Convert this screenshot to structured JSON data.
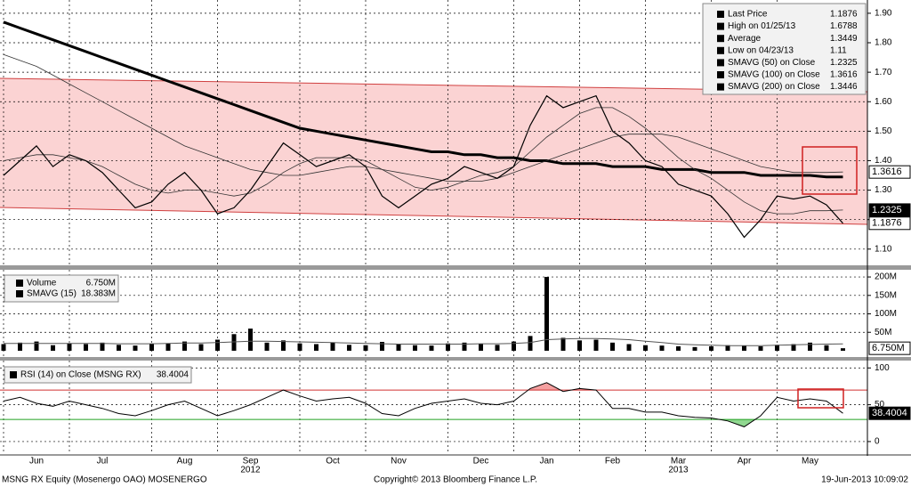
{
  "x_axis": {
    "categories": [
      null,
      null,
      "Jun",
      null,
      null,
      null,
      "Jul",
      null,
      null,
      null,
      null,
      "Aug",
      null,
      null,
      null,
      "Sep",
      null,
      null,
      null,
      null,
      "Oct",
      null,
      null,
      null,
      "Nov",
      null,
      null,
      null,
      null,
      "Dec",
      null,
      null,
      null,
      "Jan",
      null,
      null,
      null,
      "Feb",
      null,
      null,
      null,
      "Mar",
      null,
      null,
      null,
      "Apr",
      null,
      null,
      null,
      "May",
      null,
      null
    ],
    "year_labels": [
      null,
      null,
      null,
      null,
      null,
      null,
      null,
      null,
      null,
      null,
      null,
      null,
      null,
      null,
      null,
      "2012",
      null,
      null,
      null,
      null,
      null,
      null,
      null,
      null,
      null,
      null,
      null,
      null,
      null,
      null,
      null,
      null,
      null,
      null,
      null,
      null,
      null,
      null,
      null,
      null,
      null,
      "2013",
      null,
      null,
      null,
      null,
      null,
      null,
      null,
      null,
      null,
      null
    ]
  },
  "chart_data": [
    {
      "type": "line",
      "ylim": [
        1.045,
        1.945
      ],
      "yticks": [
        {
          "value": 1.1,
          "label": "1.10"
        },
        {
          "value": 1.2,
          "label": "1.20"
        },
        {
          "value": 1.3,
          "label": "1.30"
        },
        {
          "value": 1.4,
          "label": "1.40"
        },
        {
          "value": 1.5,
          "label": "1.50"
        },
        {
          "value": 1.6,
          "label": "1.60"
        },
        {
          "value": 1.7,
          "label": "1.70"
        },
        {
          "value": 1.8,
          "label": "1.80"
        },
        {
          "value": 1.9,
          "label": "1.90"
        }
      ],
      "grid": true,
      "legend": "upper right",
      "series": [
        {
          "name": "Last Price",
          "color": "#000000",
          "width": 1.2,
          "tag": true,
          "values": [
            1.35,
            1.4,
            1.45,
            1.38,
            1.42,
            1.4,
            1.36,
            1.3,
            1.24,
            1.26,
            1.32,
            1.36,
            1.3,
            1.22,
            1.24,
            1.3,
            1.38,
            1.46,
            1.42,
            1.38,
            1.4,
            1.42,
            1.38,
            1.28,
            1.24,
            1.28,
            1.32,
            1.34,
            1.38,
            1.36,
            1.34,
            1.38,
            1.52,
            1.62,
            1.58,
            1.6,
            1.62,
            1.5,
            1.46,
            1.4,
            1.38,
            1.32,
            1.3,
            1.28,
            1.22,
            1.14,
            1.2,
            1.28,
            1.27,
            1.28,
            1.25,
            1.1876
          ]
        },
        {
          "name": "SMAVG (50) on Close",
          "color": "#333333",
          "width": 0.8,
          "tag": true,
          "values": [
            1.4,
            1.41,
            1.42,
            1.42,
            1.41,
            1.4,
            1.38,
            1.35,
            1.32,
            1.3,
            1.29,
            1.3,
            1.3,
            1.29,
            1.28,
            1.29,
            1.32,
            1.36,
            1.39,
            1.41,
            1.41,
            1.41,
            1.4,
            1.37,
            1.34,
            1.31,
            1.3,
            1.31,
            1.33,
            1.35,
            1.36,
            1.38,
            1.43,
            1.48,
            1.52,
            1.56,
            1.58,
            1.58,
            1.55,
            1.51,
            1.46,
            1.41,
            1.37,
            1.34,
            1.3,
            1.26,
            1.23,
            1.22,
            1.22,
            1.23,
            1.23,
            1.2325
          ]
        },
        {
          "name": "SMAVG (100) on Close",
          "color": "#333333",
          "width": 0.8,
          "tag": true,
          "values": [
            1.76,
            1.74,
            1.72,
            1.69,
            1.66,
            1.63,
            1.6,
            1.57,
            1.54,
            1.51,
            1.48,
            1.45,
            1.43,
            1.41,
            1.39,
            1.37,
            1.36,
            1.35,
            1.35,
            1.36,
            1.37,
            1.38,
            1.38,
            1.37,
            1.36,
            1.35,
            1.34,
            1.33,
            1.33,
            1.33,
            1.34,
            1.36,
            1.38,
            1.4,
            1.42,
            1.44,
            1.46,
            1.48,
            1.49,
            1.49,
            1.49,
            1.48,
            1.46,
            1.44,
            1.42,
            1.4,
            1.38,
            1.37,
            1.36,
            1.36,
            1.36,
            1.3616
          ]
        },
        {
          "name": "SMAVG (200) on Close",
          "color": "#000000",
          "width": 3,
          "tag": false,
          "values": [
            1.87,
            1.85,
            1.83,
            1.81,
            1.79,
            1.77,
            1.75,
            1.73,
            1.71,
            1.69,
            1.67,
            1.65,
            1.63,
            1.61,
            1.59,
            1.57,
            1.55,
            1.53,
            1.51,
            1.5,
            1.49,
            1.48,
            1.47,
            1.46,
            1.45,
            1.44,
            1.43,
            1.43,
            1.42,
            1.42,
            1.41,
            1.41,
            1.4,
            1.4,
            1.39,
            1.39,
            1.39,
            1.38,
            1.38,
            1.38,
            1.37,
            1.37,
            1.37,
            1.36,
            1.36,
            1.36,
            1.35,
            1.35,
            1.35,
            1.35,
            1.345,
            1.3446
          ]
        }
      ],
      "stats": [
        {
          "name": "High on 01/25/13",
          "value": 1.6788
        },
        {
          "name": "Average",
          "value": 1.3449
        },
        {
          "name": "Low on 04/23/13",
          "value": 1.11
        }
      ]
    },
    {
      "type": "bar",
      "ylim": [
        -17,
        219.5
      ],
      "yticks": [
        {
          "value": 50,
          "label": "50M"
        },
        {
          "value": 100,
          "label": "100M"
        },
        {
          "value": 150,
          "label": "150M"
        },
        {
          "value": 200,
          "label": "200M"
        }
      ],
      "grid": true,
      "series": [
        {
          "name": "Volume",
          "color": "#000000",
          "last_label": "6.750M",
          "values": [
            18,
            22,
            25,
            15,
            20,
            18,
            22,
            16,
            14,
            18,
            20,
            25,
            18,
            30,
            45,
            60,
            22,
            28,
            20,
            18,
            22,
            16,
            15,
            24,
            18,
            15,
            14,
            20,
            22,
            18,
            16,
            25,
            40,
            200,
            35,
            28,
            30,
            22,
            18,
            15,
            14,
            12,
            10,
            12,
            15,
            14,
            12,
            16,
            18,
            22,
            15,
            6.75
          ]
        },
        {
          "name": "SMAVG (15)",
          "color": "#555555",
          "last_label": "18.383M",
          "values": [
            20,
            20,
            20,
            20,
            20,
            20,
            20,
            19,
            19,
            19,
            20,
            21,
            21,
            22,
            24,
            26,
            26,
            25,
            24,
            23,
            22,
            21,
            20,
            19,
            18,
            18,
            18,
            18,
            18,
            19,
            19,
            20,
            22,
            30,
            32,
            33,
            33,
            32,
            30,
            26,
            22,
            18,
            16,
            15,
            14,
            14,
            14,
            15,
            16,
            17,
            18,
            18.383
          ]
        }
      ]
    },
    {
      "type": "line",
      "ylim": [
        -17,
        110
      ],
      "yticks": [
        0,
        50,
        100
      ],
      "grid": true,
      "levels": [
        {
          "value": 70,
          "color": "#d03030",
          "fill": "#f4a0a0"
        },
        {
          "value": 30,
          "color": "#20a020",
          "fill": "#90d890"
        }
      ],
      "series": [
        {
          "name": "RSI (14) on Close (MSNG RX)",
          "color": "#000000",
          "values": [
            55,
            60,
            52,
            48,
            55,
            50,
            45,
            38,
            35,
            42,
            50,
            55,
            45,
            35,
            42,
            50,
            60,
            70,
            62,
            55,
            58,
            60,
            52,
            38,
            35,
            45,
            52,
            55,
            58,
            52,
            50,
            55,
            72,
            80,
            68,
            72,
            70,
            45,
            45,
            40,
            40,
            35,
            33,
            32,
            28,
            20,
            35,
            60,
            55,
            58,
            55,
            38.4004
          ]
        }
      ]
    }
  ],
  "footer": {
    "left": "MSNG RX Equity (Mosenergo OAO) MOSENERGO",
    "center": "Copyright© 2013 Bloomberg Finance L.P.",
    "right": "19-Jun-2013 10:09:02"
  }
}
